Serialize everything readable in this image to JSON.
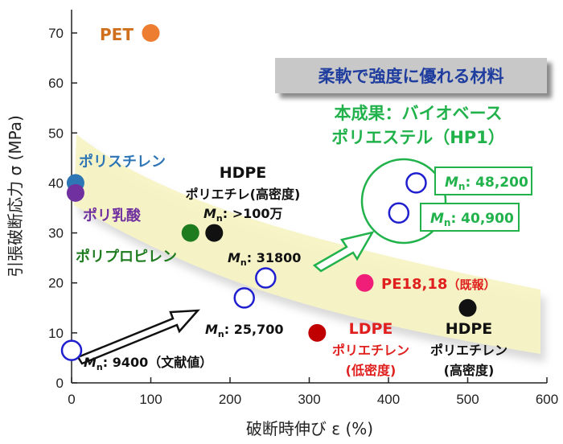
{
  "chart_data": {
    "type": "scatter",
    "xlabel": "破断時伸び ε (%)",
    "ylabel": "引張破断応力 σ (MPa)",
    "xlim": [
      0,
      600
    ],
    "ylim": [
      0,
      75
    ],
    "x_ticks": [
      "0",
      "100",
      "200",
      "300",
      "400",
      "500",
      "600"
    ],
    "y_ticks": [
      "0",
      "10",
      "20",
      "30",
      "40",
      "50",
      "60",
      "70"
    ],
    "grid": false,
    "points": [
      {
        "name": "PET",
        "x": 100,
        "y": 70,
        "style": "filled",
        "color": "#ED7D31"
      },
      {
        "name": "ポリスチレン",
        "x": 5,
        "y": 40,
        "style": "filled",
        "color": "#2E75B6"
      },
      {
        "name": "ポリ乳酸",
        "x": 5,
        "y": 38,
        "style": "filled",
        "color": "#7030A0"
      },
      {
        "name": "ポリプロピレン",
        "x": 150,
        "y": 30,
        "style": "filled",
        "color": "#1E7B1E"
      },
      {
        "name": "HDPE ポリエチレ(高密度) >100万",
        "x": 180,
        "y": 30,
        "style": "filled",
        "color": "#111111"
      },
      {
        "name": "PE18,18",
        "x": 370,
        "y": 20,
        "style": "filled",
        "color": "#F01E78"
      },
      {
        "name": "LDPE ポリエチレン(低密度)",
        "x": 310,
        "y": 10,
        "style": "filled",
        "color": "#C00000"
      },
      {
        "name": "HDPE ポリエチレン(高密度)",
        "x": 500,
        "y": 15,
        "style": "filled",
        "color": "#111111"
      },
      {
        "name": "9400",
        "x": 0,
        "y": 6.5,
        "style": "open",
        "color": "#1F1FD0"
      },
      {
        "name": "25,700",
        "x": 218,
        "y": 17,
        "style": "open",
        "color": "#1F1FD0"
      },
      {
        "name": "31800",
        "x": 245,
        "y": 21,
        "style": "open",
        "color": "#1F1FD0"
      },
      {
        "name": "40,900",
        "x": 413,
        "y": 34,
        "style": "open",
        "color": "#1F1FD0"
      },
      {
        "name": "48,200",
        "x": 435,
        "y": 40,
        "style": "open",
        "color": "#1F1FD0"
      }
    ]
  },
  "labels": {
    "pet": "PET",
    "polystyrene": "ポリスチレン",
    "pla": "ポリ乳酸",
    "pp": "ポリプロピレン",
    "hdpe1_title": "HDPE",
    "hdpe1_sub": "ポリエチレ(高密度)",
    "hdpe1_mn_sym": "M",
    "hdpe1_mn_sub": "n",
    "hdpe1_mn_val": ": >100万",
    "mn_31800": ": 31800",
    "mn_25700": ": 25,700",
    "mn_9400": ": 9400（文献値）",
    "pe1818_name": "PE18,18",
    "pe1818_note": "（既報）",
    "ldpe_title": "LDPE",
    "ldpe_sub1": "ポリエチレン",
    "ldpe_sub2": "(低密度)",
    "hdpe2_title": "HDPE",
    "hdpe2_sub1": "ポリエチレン",
    "hdpe2_sub2": "(高密度)",
    "banner": "柔軟で強度に優れる材料",
    "result_line1": "本成果：バイオベース",
    "result_line2": "ポリエステル（HP1）",
    "box_48200": ": 48,200",
    "box_40900": ": 40,900"
  },
  "colors": {
    "blue_label": "#2E75B6",
    "purple_label": "#7030A0",
    "green_label": "#1E7B1E",
    "bright_green": "#22B24C",
    "red_label": "#E0201E",
    "orange_label": "#D0701E",
    "banner_bg": "#C8C8C8",
    "banner_text": "#1F3D9E",
    "band": "#F7F4C5"
  }
}
